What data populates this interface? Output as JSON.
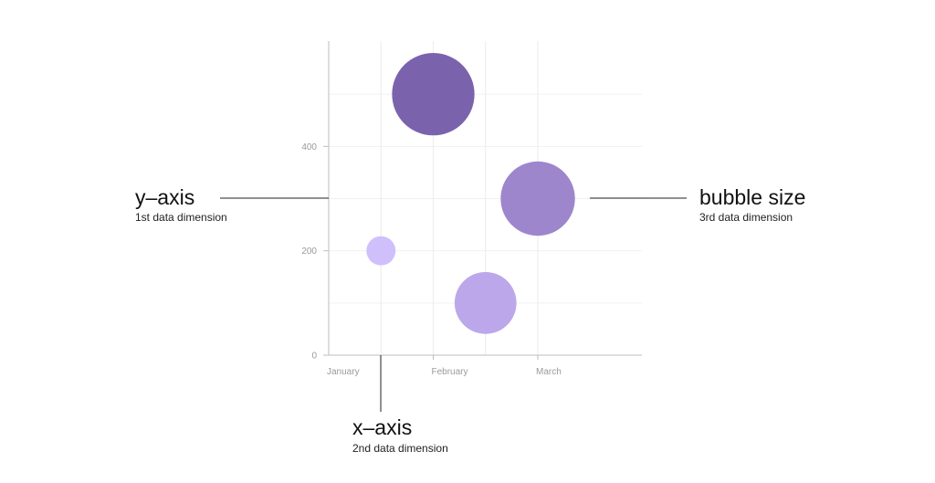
{
  "chart_data": {
    "type": "bubble",
    "title": "",
    "categories": [
      "January",
      "February",
      "March"
    ],
    "y_ticks": [
      0,
      200,
      400
    ],
    "ylim": [
      0,
      600
    ],
    "grid": true,
    "legend": "none",
    "points": [
      {
        "x": 1.5,
        "y": 200,
        "size": 1,
        "color": "#cfc0fb"
      },
      {
        "x": 2.0,
        "y": 500,
        "size": 8,
        "color": "#7b62ad"
      },
      {
        "x": 2.5,
        "y": 100,
        "size": 4.5,
        "color": "#bca7ea"
      },
      {
        "x": 3.0,
        "y": 300,
        "size": 6.5,
        "color": "#9e86cd"
      }
    ]
  },
  "annotations": {
    "y_axis": {
      "title": "y–axis",
      "subtitle": "1st data dimension"
    },
    "x_axis": {
      "title": "x–axis",
      "subtitle": "2nd data dimension"
    },
    "bubble_size": {
      "title": "bubble size",
      "subtitle": "3rd data dimension"
    }
  }
}
